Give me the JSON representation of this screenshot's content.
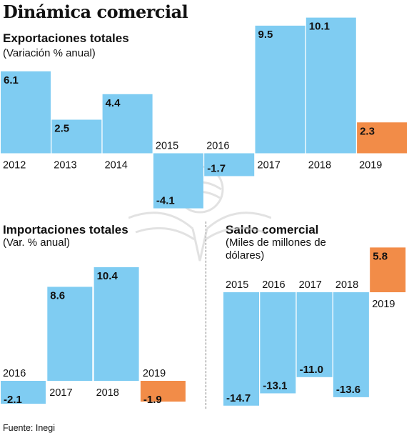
{
  "header": {
    "title": "Dinámica comercial"
  },
  "source": "Fuente: Inegi",
  "colors": {
    "bar": "#7fccf2",
    "highlight": "#f28c48",
    "label": "#111111"
  },
  "chart_data": [
    {
      "type": "bar",
      "title": "Exportaciones totales",
      "subtitle": "(Variación % anual)",
      "categories": [
        "2012",
        "2013",
        "2014",
        "2015",
        "2016",
        "2017",
        "2018",
        "2019"
      ],
      "values": [
        6.1,
        2.5,
        4.4,
        -4.1,
        -1.7,
        9.5,
        10.1,
        2.3
      ],
      "highlight": [
        "2019"
      ]
    },
    {
      "type": "bar",
      "title": "Importaciones totales",
      "subtitle": "(Var. % anual)",
      "categories": [
        "2016",
        "2017",
        "2018",
        "2019"
      ],
      "values": [
        -2.1,
        8.6,
        10.4,
        -1.9
      ],
      "highlight": [
        "2019"
      ]
    },
    {
      "type": "bar",
      "title": "Saldo comercial",
      "subtitle": "(Miles de millones de dólares)",
      "categories": [
        "2015",
        "2016",
        "2017",
        "2018",
        "2019"
      ],
      "values": [
        -14.7,
        -13.1,
        -11.0,
        -13.6,
        5.8
      ],
      "value_labels": [
        "-14.7",
        "-13.1",
        "-11.0",
        "-13.6",
        "5.8"
      ],
      "highlight": [
        "2019"
      ]
    }
  ]
}
